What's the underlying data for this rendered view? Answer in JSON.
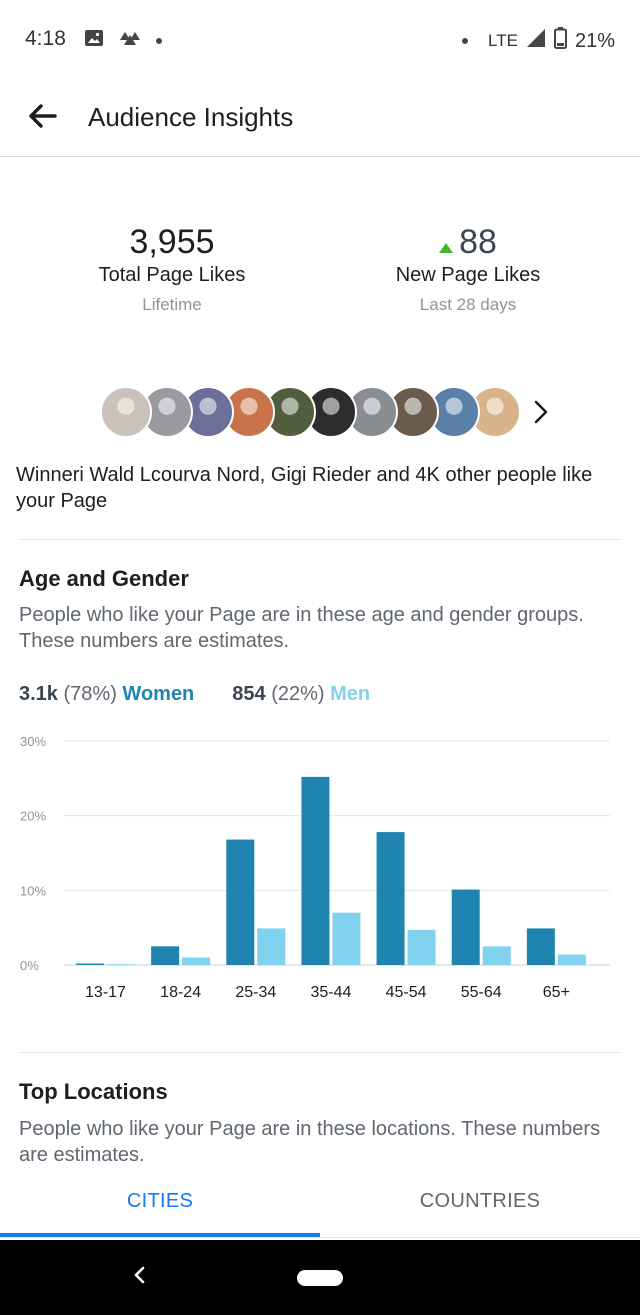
{
  "status_bar": {
    "time": "4:18",
    "network": "LTE",
    "battery": "21%",
    "icons": [
      "image-icon",
      "cloud-icon",
      "dot-icon",
      "dot-icon",
      "signal-icon",
      "battery-icon"
    ]
  },
  "app_bar": {
    "title": "Audience Insights",
    "back_icon": "back-arrow-icon"
  },
  "stats": {
    "total": {
      "value": "3,955",
      "label": "Total Page Likes",
      "sub": "Lifetime"
    },
    "new": {
      "value": "88",
      "label": "New Page Likes",
      "sub": "Last 28 days",
      "trend_icon": "triangle-up-icon",
      "trend_color": "#42b72a"
    }
  },
  "likers": {
    "text": "Winneri Wald Lcourva Nord, Gigi Rieder and 4K other people like your Page",
    "avatar_colors": [
      "#c9c2b8",
      "#9a9aa0",
      "#6b6f9a",
      "#c8734a",
      "#4f5e3c",
      "#2e2c2e",
      "#8a8e92",
      "#6a5b4c",
      "#5b80a8",
      "#d9b48a"
    ]
  },
  "age_gender": {
    "title": "Age and Gender",
    "description": "People who like your Page are in these age and gender groups. These numbers are estimates.",
    "women": {
      "count": "3.1k",
      "pct": "(78%)",
      "label": "Women"
    },
    "men": {
      "count": "854",
      "pct": "(22%)",
      "label": "Men"
    },
    "colors": {
      "women": "#1f85b0",
      "men": "#80d2ee"
    }
  },
  "chart_data": {
    "type": "bar",
    "categories": [
      "13-17",
      "18-24",
      "25-34",
      "35-44",
      "45-54",
      "55-64",
      "65+"
    ],
    "series": [
      {
        "name": "Women",
        "values": [
          0.2,
          2.5,
          16.8,
          25.2,
          17.8,
          10.1,
          4.9
        ]
      },
      {
        "name": "Men",
        "values": [
          0.1,
          1.0,
          4.9,
          7.0,
          4.7,
          2.5,
          1.4
        ]
      }
    ],
    "yticks": [
      "0%",
      "10%",
      "20%",
      "30%"
    ],
    "ylim": [
      0,
      30
    ],
    "grid": true,
    "legend": "none"
  },
  "top_locations": {
    "title": "Top Locations",
    "description": "People who like your Page are in these locations. These numbers are estimates."
  },
  "tabs": [
    {
      "label": "CITIES",
      "active": true
    },
    {
      "label": "COUNTRIES",
      "active": false
    }
  ],
  "colors": {
    "accent": "#1877f2"
  }
}
